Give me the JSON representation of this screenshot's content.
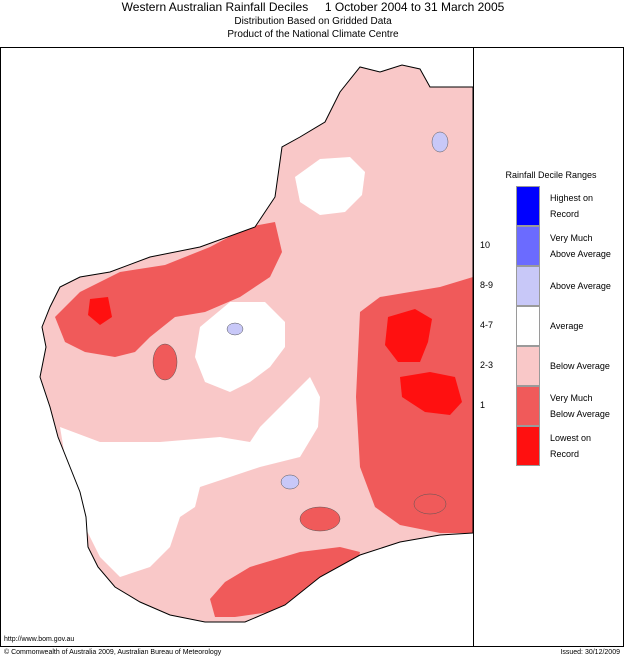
{
  "header": {
    "title": "Western Australian Rainfall Deciles",
    "period": "1 October 2004 to 31 March 2005",
    "subtitle1": "Distribution Based on Gridded Data",
    "subtitle2": "Product of the National Climate Centre"
  },
  "legend": {
    "title": "Rainfall Decile Ranges",
    "items": [
      {
        "decile": "",
        "label_line1": "Highest on",
        "label_line2": "Record",
        "color": "#0000ff"
      },
      {
        "decile": "10",
        "label_line1": "Very Much",
        "label_line2": "Above Average",
        "color": "#6b6bff"
      },
      {
        "decile": "8-9",
        "label_line1": "Above Average",
        "label_line2": "",
        "color": "#c8c8f8"
      },
      {
        "decile": "4-7",
        "label_line1": "Average",
        "label_line2": "",
        "color": "#ffffff"
      },
      {
        "decile": "2-3",
        "label_line1": "Below Average",
        "label_line2": "",
        "color": "#f9c8c8"
      },
      {
        "decile": "1",
        "label_line1": "Very Much",
        "label_line2": "Below Average",
        "color": "#f05a5a"
      },
      {
        "decile": "",
        "label_line1": "Lowest on",
        "label_line2": "Record",
        "color": "#ff1010"
      }
    ]
  },
  "footer": {
    "url": "http://www.bom.gov.au",
    "copyright": "© Commonwealth of Australia 2009, Australian Bureau of Meteorology",
    "issued": "Issued: 30/12/2009"
  }
}
